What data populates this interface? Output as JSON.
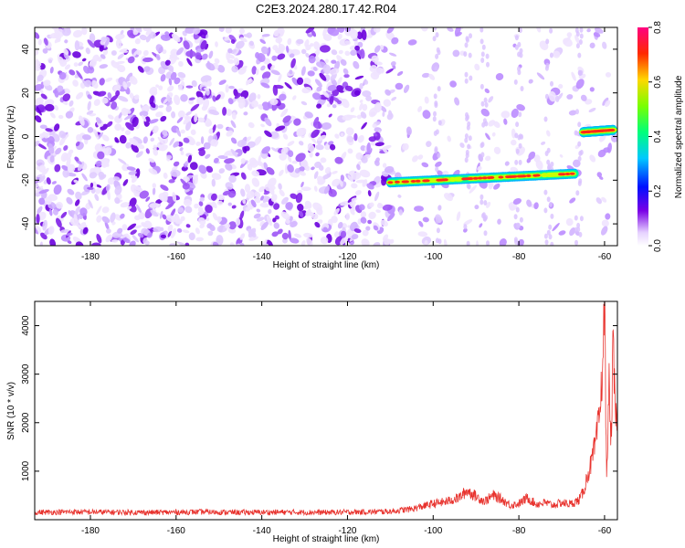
{
  "title": "C2E3.2024.280.17.42.R04",
  "chart_data": [
    {
      "type": "heatmap",
      "xlabel": "Height of straight line (km)",
      "ylabel": "Frequency (Hz)",
      "xlim": [
        -193,
        -57
      ],
      "ylim": [
        -50,
        50
      ],
      "x_ticks": [
        "-180",
        "-160",
        "-140",
        "-120",
        "-100",
        "-80",
        "-60"
      ],
      "x_tick_values": [
        -180,
        -160,
        -140,
        -120,
        -100,
        -80,
        -60
      ],
      "y_ticks": [
        "40",
        "20",
        "0",
        "-20",
        "-40"
      ],
      "y_tick_values": [
        40,
        20,
        0,
        -20,
        -40
      ],
      "colorbar": {
        "label": "Normalized spectral amplitude",
        "ticks": [
          "0.8",
          "0.6",
          "0.4",
          "0.2",
          "0.0"
        ],
        "tick_values": [
          0.8,
          0.6,
          0.4,
          0.2,
          0.0
        ],
        "range": [
          0,
          0.8
        ]
      },
      "features": [
        {
          "x_start": -110,
          "x_end": -67,
          "y_start": -21,
          "y_end": -17,
          "amplitude": 0.55
        },
        {
          "x_start": -65,
          "x_end": -58,
          "y_start": 2,
          "y_end": 3,
          "amplitude": 0.65
        }
      ]
    },
    {
      "type": "line",
      "xlabel": "Height of straight line (km)",
      "ylabel": "SNR (10 * v/v)",
      "xlim": [
        -193,
        -57
      ],
      "ylim": [
        0,
        4500
      ],
      "x_ticks": [
        "-180",
        "-160",
        "-140",
        "-120",
        "-100",
        "-80",
        "-60"
      ],
      "x_tick_values": [
        -180,
        -160,
        -140,
        -120,
        -100,
        -80,
        -60
      ],
      "y_ticks": [
        "4000",
        "3000",
        "2000",
        "1000"
      ],
      "y_tick_values": [
        4000,
        3000,
        2000,
        1000
      ],
      "series_color": "#e8332e",
      "series": [
        {
          "x": [
            -193,
            -185,
            -175,
            -165,
            -155,
            -145,
            -135,
            -125,
            -115,
            -110,
            -105,
            -100,
            -97,
            -94,
            -92,
            -90,
            -88,
            -86,
            -84,
            -82,
            -80,
            -78,
            -76,
            -74,
            -72,
            -70,
            -68,
            -66,
            -65,
            -64,
            -63,
            -62,
            -61,
            -60.5,
            -60,
            -59.5,
            -59,
            -58.5,
            -58,
            -57.5
          ],
          "values": [
            150,
            160,
            155,
            150,
            160,
            150,
            155,
            150,
            160,
            170,
            220,
            330,
            370,
            450,
            600,
            480,
            380,
            500,
            420,
            300,
            330,
            450,
            320,
            350,
            300,
            350,
            320,
            400,
            560,
            900,
            1200,
            1600,
            2300,
            3100,
            4450,
            700,
            2900,
            1500,
            3600,
            2100
          ]
        }
      ]
    }
  ]
}
